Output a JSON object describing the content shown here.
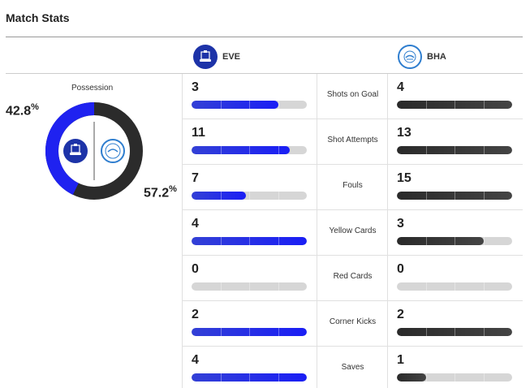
{
  "title": "Match Stats",
  "colors": {
    "home": "#1f22f0",
    "away": "#2b2b2b",
    "track": "#d6d6d6"
  },
  "home": {
    "abbr": "EVE",
    "crest": "everton-crest-icon"
  },
  "away": {
    "abbr": "BHA",
    "crest": "brighton-crest-icon"
  },
  "possession": {
    "label": "Possession",
    "home_pct": "42.8",
    "away_pct": "57.2",
    "home_value": 0.428
  },
  "stats": [
    {
      "label": "Shots on Goal",
      "home": "3",
      "away": "4",
      "home_fill": 0.75,
      "away_fill": 1.0
    },
    {
      "label": "Shot Attempts",
      "home": "11",
      "away": "13",
      "home_fill": 0.85,
      "away_fill": 1.0
    },
    {
      "label": "Fouls",
      "home": "7",
      "away": "15",
      "home_fill": 0.47,
      "away_fill": 1.0
    },
    {
      "label": "Yellow Cards",
      "home": "4",
      "away": "3",
      "home_fill": 1.0,
      "away_fill": 0.75
    },
    {
      "label": "Red Cards",
      "home": "0",
      "away": "0",
      "home_fill": 0.0,
      "away_fill": 0.0
    },
    {
      "label": "Corner Kicks",
      "home": "2",
      "away": "2",
      "home_fill": 1.0,
      "away_fill": 1.0
    },
    {
      "label": "Saves",
      "home": "4",
      "away": "1",
      "home_fill": 1.0,
      "away_fill": 0.25
    }
  ]
}
